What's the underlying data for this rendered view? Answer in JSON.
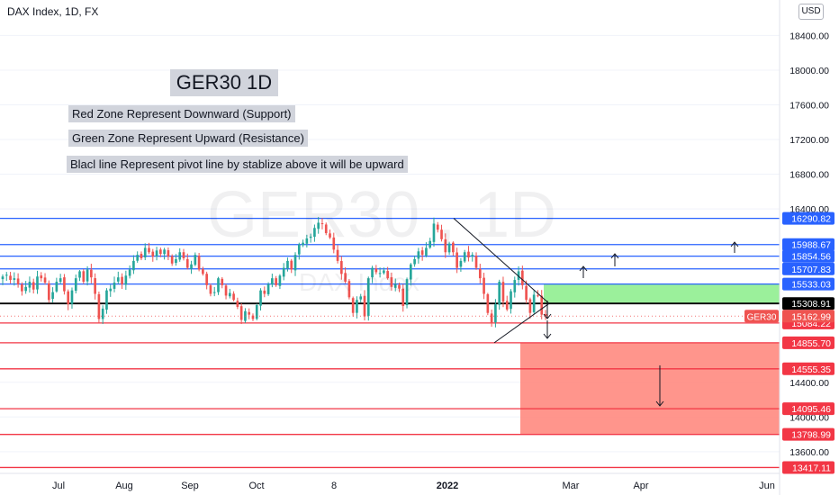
{
  "header": {
    "symbol": "DAX Index, 1D, FX",
    "currency": "USD"
  },
  "annotations": {
    "title": "GER30 1D",
    "note_red": "Red Zone Represent Downward (Support)",
    "note_green": "Green Zone Represent Upward (Resistance)",
    "note_black": "Blacl line Represent pivot line by stablize above it will be upward"
  },
  "watermark": {
    "main": "GER30 , 1D",
    "sub": "DAX Index"
  },
  "chart_data": {
    "type": "candlestick",
    "title": "GER30 1D",
    "xlabel": "",
    "ylabel": "",
    "ylim": [
      13370,
      18560
    ],
    "x_tick_labels": [
      "Jul",
      "Aug",
      "Sep",
      "Oct",
      "8",
      "2022",
      "Mar",
      "Apr",
      "Jun"
    ],
    "y_tick_labels": [
      18400,
      18000,
      17600,
      17200,
      16800,
      16400,
      14400,
      14000,
      13600
    ],
    "current_price": {
      "label": "GER30",
      "value": 15162.99,
      "color": "#ef5350"
    },
    "levels": [
      {
        "value": 16290.82,
        "role": "resistance",
        "color": "#2962ff"
      },
      {
        "value": 15988.67,
        "role": "resistance",
        "color": "#2962ff"
      },
      {
        "value": 15854.56,
        "role": "resistance",
        "color": "#2962ff"
      },
      {
        "value": 15707.83,
        "role": "resistance",
        "color": "#2962ff"
      },
      {
        "value": 15533.03,
        "role": "resistance",
        "color": "#2962ff"
      },
      {
        "value": 15308.91,
        "role": "pivot",
        "color": "#000000"
      },
      {
        "value": 15084.22,
        "role": "support",
        "color": "#f23645"
      },
      {
        "value": 14855.7,
        "role": "support",
        "color": "#f23645"
      },
      {
        "value": 14555.35,
        "role": "support",
        "color": "#f23645"
      },
      {
        "value": 14095.46,
        "role": "support",
        "color": "#f23645"
      },
      {
        "value": 13798.99,
        "role": "support",
        "color": "#f23645"
      },
      {
        "value": 13417.11,
        "role": "support",
        "color": "#f23645"
      }
    ],
    "zones": [
      {
        "name": "Green Zone",
        "from": 15308.91,
        "to": 15533.03,
        "color": "#90ee90"
      },
      {
        "name": "Red Zone",
        "from": 13798.99,
        "to": 14855.7,
        "color": "#ff8a80"
      }
    ],
    "candle_colors": {
      "up": "#26a69a",
      "down": "#ef5350"
    },
    "closes": [
      15620,
      15640,
      15580,
      15600,
      15530,
      15450,
      15500,
      15560,
      15470,
      15620,
      15600,
      15550,
      15350,
      15440,
      15560,
      15600,
      15450,
      15300,
      15460,
      15600,
      15680,
      15560,
      15700,
      15610,
      15420,
      15130,
      15250,
      15460,
      15480,
      15550,
      15610,
      15530,
      15630,
      15700,
      15800,
      15870,
      15830,
      15950,
      15900,
      15850,
      15920,
      15880,
      15930,
      15850,
      15770,
      15820,
      15900,
      15830,
      15720,
      15760,
      15870,
      15700,
      15650,
      15520,
      15420,
      15440,
      15600,
      15520,
      15400,
      15430,
      15350,
      15270,
      15120,
      15220,
      15180,
      15130,
      15290,
      15460,
      15420,
      15530,
      15600,
      15520,
      15630,
      15720,
      15800,
      15700,
      15870,
      15990,
      16010,
      16060,
      16080,
      16180,
      16240,
      16230,
      16120,
      16070,
      15930,
      15800,
      15650,
      15560,
      15380,
      15200,
      15350,
      15390,
      15160,
      15600,
      15720,
      15670,
      15660,
      15690,
      15600,
      15500,
      15530,
      15480,
      15280,
      15590,
      15760,
      15820,
      15910,
      15870,
      15950,
      16030,
      16230,
      16160,
      16050,
      15900,
      16000,
      15900,
      15720,
      15800,
      15900,
      15840,
      15870,
      15720,
      15600,
      15420,
      15200,
      15080,
      15300,
      15560,
      15330,
      15240,
      15450,
      15580,
      15680,
      15520,
      15350,
      15200,
      15410,
      15400,
      15180,
      15163
    ]
  }
}
